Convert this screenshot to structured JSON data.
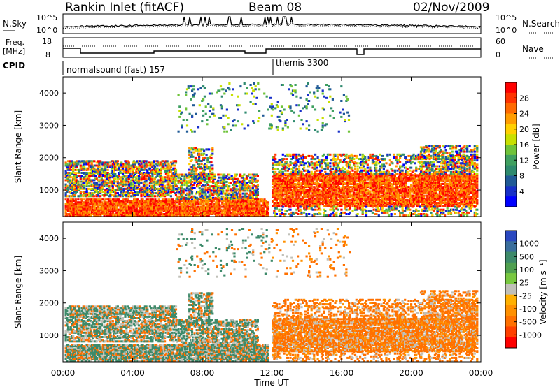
{
  "header": {
    "station": "Rankin Inlet (fitACF)",
    "beam": "Beam 08",
    "date": "02/Nov/2009"
  },
  "top_panel": {
    "left_label": "N.Sky",
    "right_label": "N.Search",
    "left_ticks": [
      "10^5",
      "10^0"
    ],
    "right_ticks": [
      "10^5",
      "10^0"
    ]
  },
  "freq_panel": {
    "left_label_1": "Freq.",
    "left_label_2": "[MHz]",
    "right_label": "Nave",
    "left_ticks": [
      "18",
      "8"
    ],
    "right_ticks": [
      "60",
      "0"
    ]
  },
  "cpid": {
    "label": "CPID",
    "modes": [
      {
        "name": "normalsound (fast) 157",
        "start_hour": 0
      },
      {
        "name": "themis 3300",
        "start_hour": 12
      }
    ]
  },
  "chart_data": [
    {
      "type": "heatmap",
      "ylabel": "Slant Range [km]",
      "xlabel": "Time UT",
      "x_ticks": [
        "00:00",
        "04:00",
        "08:00",
        "12:00",
        "16:00",
        "20:00",
        "00:00"
      ],
      "xlim": [
        0,
        24
      ],
      "ylim": [
        180,
        4500
      ],
      "y_ticks": [
        1000,
        2000,
        3000,
        4000
      ],
      "colorbar": {
        "label": "Power [dB]",
        "ticks": [
          "28",
          "24",
          "20",
          "16",
          "12",
          "8",
          "4"
        ],
        "colors": [
          "#ff0000",
          "#ff3300",
          "#ff6a00",
          "#ff9d00",
          "#ffd000",
          "#c8e000",
          "#6fc33a",
          "#3fa060",
          "#2e8a6e",
          "#205a96",
          "#1830c8",
          "#0000ff"
        ]
      }
    },
    {
      "type": "heatmap",
      "ylabel": "Slant Range [km]",
      "xlabel": "Time UT",
      "x_ticks": [
        "00:00",
        "04:00",
        "08:00",
        "12:00",
        "16:00",
        "20:00",
        "00:00"
      ],
      "xlim": [
        0,
        24
      ],
      "ylim": [
        180,
        4500
      ],
      "y_ticks": [
        1000,
        2000,
        3000,
        4000
      ],
      "colorbar": {
        "label": "Velocity [m s⁻¹]",
        "ticks": [
          "1000",
          "500",
          "100",
          "25",
          "-25",
          "-100",
          "-500",
          "-1000"
        ],
        "colors": [
          "#2a48c0",
          "#3a6e9c",
          "#3d8a6a",
          "#4fa050",
          "#78c840",
          "#c0c0b8",
          "#ffb000",
          "#ff9000",
          "#ff7000",
          "#ff4000",
          "#ff0000"
        ]
      }
    }
  ],
  "xaxis": {
    "label": "Time UT",
    "ticks": [
      "00:00",
      "04:00",
      "08:00",
      "12:00",
      "16:00",
      "20:00",
      "00:00"
    ]
  }
}
